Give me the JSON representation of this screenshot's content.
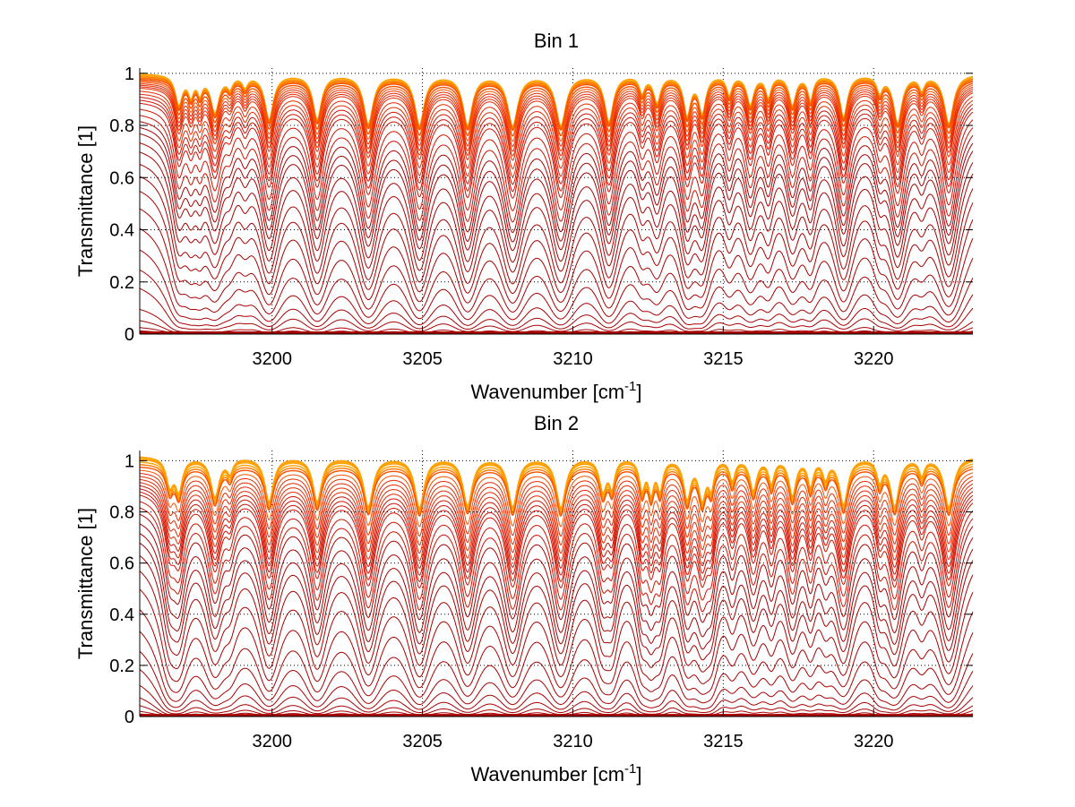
{
  "chart_data": [
    {
      "type": "line",
      "title": "Bin 1",
      "xlabel": "Wavenumber [cm",
      "xlabel_sup": "-1",
      "xlabel_end": "]",
      "ylabel": "Transmittance [1]",
      "xlim": [
        3195.6,
        3223.3
      ],
      "ylim": [
        0,
        1.02
      ],
      "xticks": [
        3200,
        3205,
        3210,
        3215,
        3220
      ],
      "yticks": [
        0,
        0.2,
        0.4,
        0.6,
        0.8,
        1
      ],
      "ytick_labels": [
        "0",
        "0.2",
        "0.4",
        "0.6",
        "0.8",
        "1"
      ],
      "xtick_labels": [
        "3200",
        "3205",
        "3210",
        "3215",
        "3220"
      ],
      "grid": true,
      "baseline_levels": [
        1.0,
        0.995,
        0.99,
        0.985,
        0.98,
        0.975,
        0.97,
        0.965,
        0.96,
        0.955,
        0.95,
        0.94,
        0.93,
        0.92,
        0.91,
        0.9,
        0.88,
        0.86,
        0.84,
        0.82,
        0.8,
        0.77,
        0.74,
        0.7,
        0.66,
        0.61,
        0.55,
        0.48,
        0.4,
        0.32,
        0.24,
        0.14,
        0.08,
        0.04,
        0.02,
        0.01
      ],
      "absorption_lines": [
        {
          "x": 3196.9,
          "depth": 0.55,
          "width": 0.1
        },
        {
          "x": 3197.3,
          "depth": 0.35,
          "width": 0.08
        },
        {
          "x": 3197.6,
          "depth": 0.3,
          "width": 0.07
        },
        {
          "x": 3198.1,
          "depth": 0.7,
          "width": 0.12
        },
        {
          "x": 3198.6,
          "depth": 0.2,
          "width": 0.08
        },
        {
          "x": 3199.1,
          "depth": 0.2,
          "width": 0.08
        },
        {
          "x": 3199.9,
          "depth": 0.85,
          "width": 0.12
        },
        {
          "x": 3201.5,
          "depth": 0.85,
          "width": 0.12
        },
        {
          "x": 3203.2,
          "depth": 0.95,
          "width": 0.13
        },
        {
          "x": 3204.9,
          "depth": 0.97,
          "width": 0.13
        },
        {
          "x": 3206.5,
          "depth": 0.97,
          "width": 0.13
        },
        {
          "x": 3208.0,
          "depth": 0.98,
          "width": 0.14
        },
        {
          "x": 3209.6,
          "depth": 0.98,
          "width": 0.14
        },
        {
          "x": 3211.2,
          "depth": 0.9,
          "width": 0.12
        },
        {
          "x": 3212.3,
          "depth": 0.3,
          "width": 0.08
        },
        {
          "x": 3212.8,
          "depth": 0.5,
          "width": 0.1
        },
        {
          "x": 3213.8,
          "depth": 0.75,
          "width": 0.1
        },
        {
          "x": 3214.3,
          "depth": 0.7,
          "width": 0.1
        },
        {
          "x": 3215.2,
          "depth": 0.35,
          "width": 0.08
        },
        {
          "x": 3215.9,
          "depth": 0.55,
          "width": 0.1
        },
        {
          "x": 3216.5,
          "depth": 0.4,
          "width": 0.08
        },
        {
          "x": 3217.3,
          "depth": 0.55,
          "width": 0.1
        },
        {
          "x": 3217.9,
          "depth": 0.45,
          "width": 0.08
        },
        {
          "x": 3219.0,
          "depth": 0.8,
          "width": 0.11
        },
        {
          "x": 3220.2,
          "depth": 0.3,
          "width": 0.08
        },
        {
          "x": 3220.8,
          "depth": 0.92,
          "width": 0.12
        },
        {
          "x": 3221.6,
          "depth": 0.25,
          "width": 0.08
        },
        {
          "x": 3222.5,
          "depth": 0.95,
          "width": 0.13
        }
      ]
    },
    {
      "type": "line",
      "title": "Bin 2",
      "xlabel": "Wavenumber [cm",
      "xlabel_sup": "-1",
      "xlabel_end": "]",
      "ylabel": "Transmittance [1]",
      "xlim": [
        3195.6,
        3223.3
      ],
      "ylim": [
        0,
        1.04
      ],
      "xticks": [
        3200,
        3205,
        3210,
        3215,
        3220
      ],
      "yticks": [
        0,
        0.2,
        0.4,
        0.6,
        0.8,
        1
      ],
      "ytick_labels": [
        "0",
        "0.2",
        "0.4",
        "0.6",
        "0.8",
        "1"
      ],
      "xtick_labels": [
        "3200",
        "3205",
        "3210",
        "3215",
        "3220"
      ],
      "grid": true,
      "baseline_levels": [
        1.02,
        1.015,
        1.01,
        1.0,
        0.99,
        0.98,
        0.97,
        0.96,
        0.95,
        0.94,
        0.93,
        0.92,
        0.91,
        0.9,
        0.89,
        0.87,
        0.85,
        0.83,
        0.8,
        0.77,
        0.74,
        0.7,
        0.65,
        0.59,
        0.52,
        0.44,
        0.36,
        0.28,
        0.2,
        0.13,
        0.08,
        0.04,
        0.02,
        0.01
      ],
      "absorption_lines": [
        {
          "x": 3196.6,
          "depth": 0.5,
          "width": 0.1
        },
        {
          "x": 3196.9,
          "depth": 0.6,
          "width": 0.1
        },
        {
          "x": 3198.1,
          "depth": 0.75,
          "width": 0.12
        },
        {
          "x": 3198.6,
          "depth": 0.25,
          "width": 0.08
        },
        {
          "x": 3199.9,
          "depth": 0.85,
          "width": 0.12
        },
        {
          "x": 3201.5,
          "depth": 0.85,
          "width": 0.12
        },
        {
          "x": 3203.2,
          "depth": 0.95,
          "width": 0.13
        },
        {
          "x": 3204.9,
          "depth": 0.97,
          "width": 0.13
        },
        {
          "x": 3206.5,
          "depth": 0.92,
          "width": 0.13
        },
        {
          "x": 3208.0,
          "depth": 0.95,
          "width": 0.13
        },
        {
          "x": 3209.6,
          "depth": 0.97,
          "width": 0.13
        },
        {
          "x": 3211.0,
          "depth": 0.6,
          "width": 0.1
        },
        {
          "x": 3211.3,
          "depth": 0.5,
          "width": 0.08
        },
        {
          "x": 3212.3,
          "depth": 0.55,
          "width": 0.08
        },
        {
          "x": 3212.6,
          "depth": 0.6,
          "width": 0.08
        },
        {
          "x": 3212.9,
          "depth": 0.55,
          "width": 0.08
        },
        {
          "x": 3213.8,
          "depth": 0.75,
          "width": 0.1
        },
        {
          "x": 3214.3,
          "depth": 0.75,
          "width": 0.1
        },
        {
          "x": 3214.6,
          "depth": 0.5,
          "width": 0.08
        },
        {
          "x": 3215.3,
          "depth": 0.4,
          "width": 0.08
        },
        {
          "x": 3216.0,
          "depth": 0.6,
          "width": 0.1
        },
        {
          "x": 3216.6,
          "depth": 0.45,
          "width": 0.08
        },
        {
          "x": 3217.3,
          "depth": 0.7,
          "width": 0.1
        },
        {
          "x": 3217.9,
          "depth": 0.5,
          "width": 0.08
        },
        {
          "x": 3218.4,
          "depth": 0.35,
          "width": 0.08
        },
        {
          "x": 3219.0,
          "depth": 0.9,
          "width": 0.12
        },
        {
          "x": 3220.2,
          "depth": 0.4,
          "width": 0.08
        },
        {
          "x": 3220.7,
          "depth": 0.93,
          "width": 0.12
        },
        {
          "x": 3221.6,
          "depth": 0.3,
          "width": 0.08
        },
        {
          "x": 3222.5,
          "depth": 0.97,
          "width": 0.13
        }
      ]
    }
  ]
}
